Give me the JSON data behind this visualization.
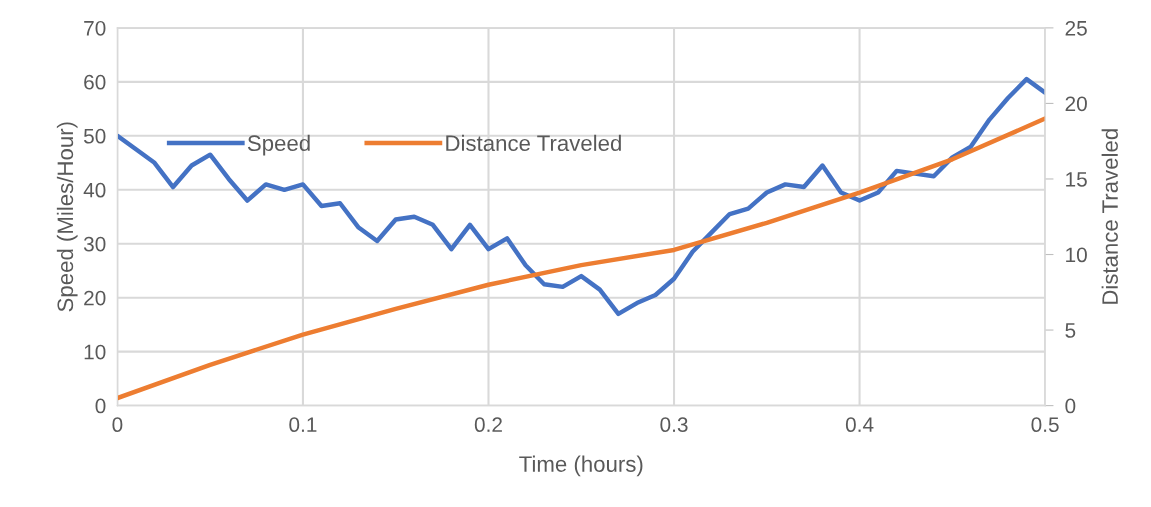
{
  "chart_data": {
    "type": "line",
    "xlabel": "Time (hours)",
    "ylabel": "Speed (Miles/Hour)",
    "y2label": "Distance Traveled",
    "xlim": [
      0,
      0.5
    ],
    "xticks": [
      0,
      0.1,
      0.2,
      0.3,
      0.4,
      0.5
    ],
    "ylim": [
      0,
      70
    ],
    "yticks": [
      0,
      10,
      20,
      30,
      40,
      50,
      60,
      70
    ],
    "y2lim": [
      0,
      25
    ],
    "y2ticks": [
      0,
      5,
      10,
      15,
      20,
      25
    ],
    "grid": true,
    "legend": "top",
    "line_style": "solid",
    "marker": "none",
    "series": [
      {
        "name": "Speed",
        "color": "#4472c4",
        "x": [
          0,
          0.01,
          0.02,
          0.03,
          0.04,
          0.05,
          0.06,
          0.07,
          0.08,
          0.09,
          0.1,
          0.11,
          0.12,
          0.13,
          0.14,
          0.15,
          0.16,
          0.17,
          0.18,
          0.19,
          0.2,
          0.21,
          0.22,
          0.23,
          0.24,
          0.25,
          0.26,
          0.27,
          0.28,
          0.29,
          0.3,
          0.31,
          0.32,
          0.33,
          0.34,
          0.35,
          0.36,
          0.37,
          0.38,
          0.39,
          0.4,
          0.41,
          0.42,
          0.43,
          0.44,
          0.45,
          0.46,
          0.47,
          0.48,
          0.49,
          0.5
        ],
        "values": [
          50,
          47.5,
          45,
          40.5,
          44.5,
          46.5,
          42,
          38,
          41,
          40,
          41,
          37,
          37.5,
          33,
          30.5,
          34.5,
          35,
          33.5,
          29,
          33.5,
          29,
          31,
          26,
          22.5,
          22,
          24,
          21.5,
          17,
          19,
          20.5,
          23.5,
          28.5,
          32,
          35.5,
          36.5,
          39.5,
          41,
          40.5,
          44.5,
          39.5,
          38,
          39.5,
          43.5,
          43,
          42.5,
          46,
          48,
          53,
          57,
          60.5,
          58
        ]
      },
      {
        "name": "Distance Traveled",
        "color": "#ed7d31",
        "axis": "y2",
        "x": [
          0,
          0.05,
          0.1,
          0.15,
          0.2,
          0.25,
          0.3,
          0.35,
          0.4,
          0.45,
          0.5
        ],
        "values": [
          0.5,
          2.7,
          4.7,
          6.4,
          8.0,
          9.3,
          10.3,
          12.1,
          14.1,
          16.3,
          19.0
        ]
      }
    ]
  }
}
